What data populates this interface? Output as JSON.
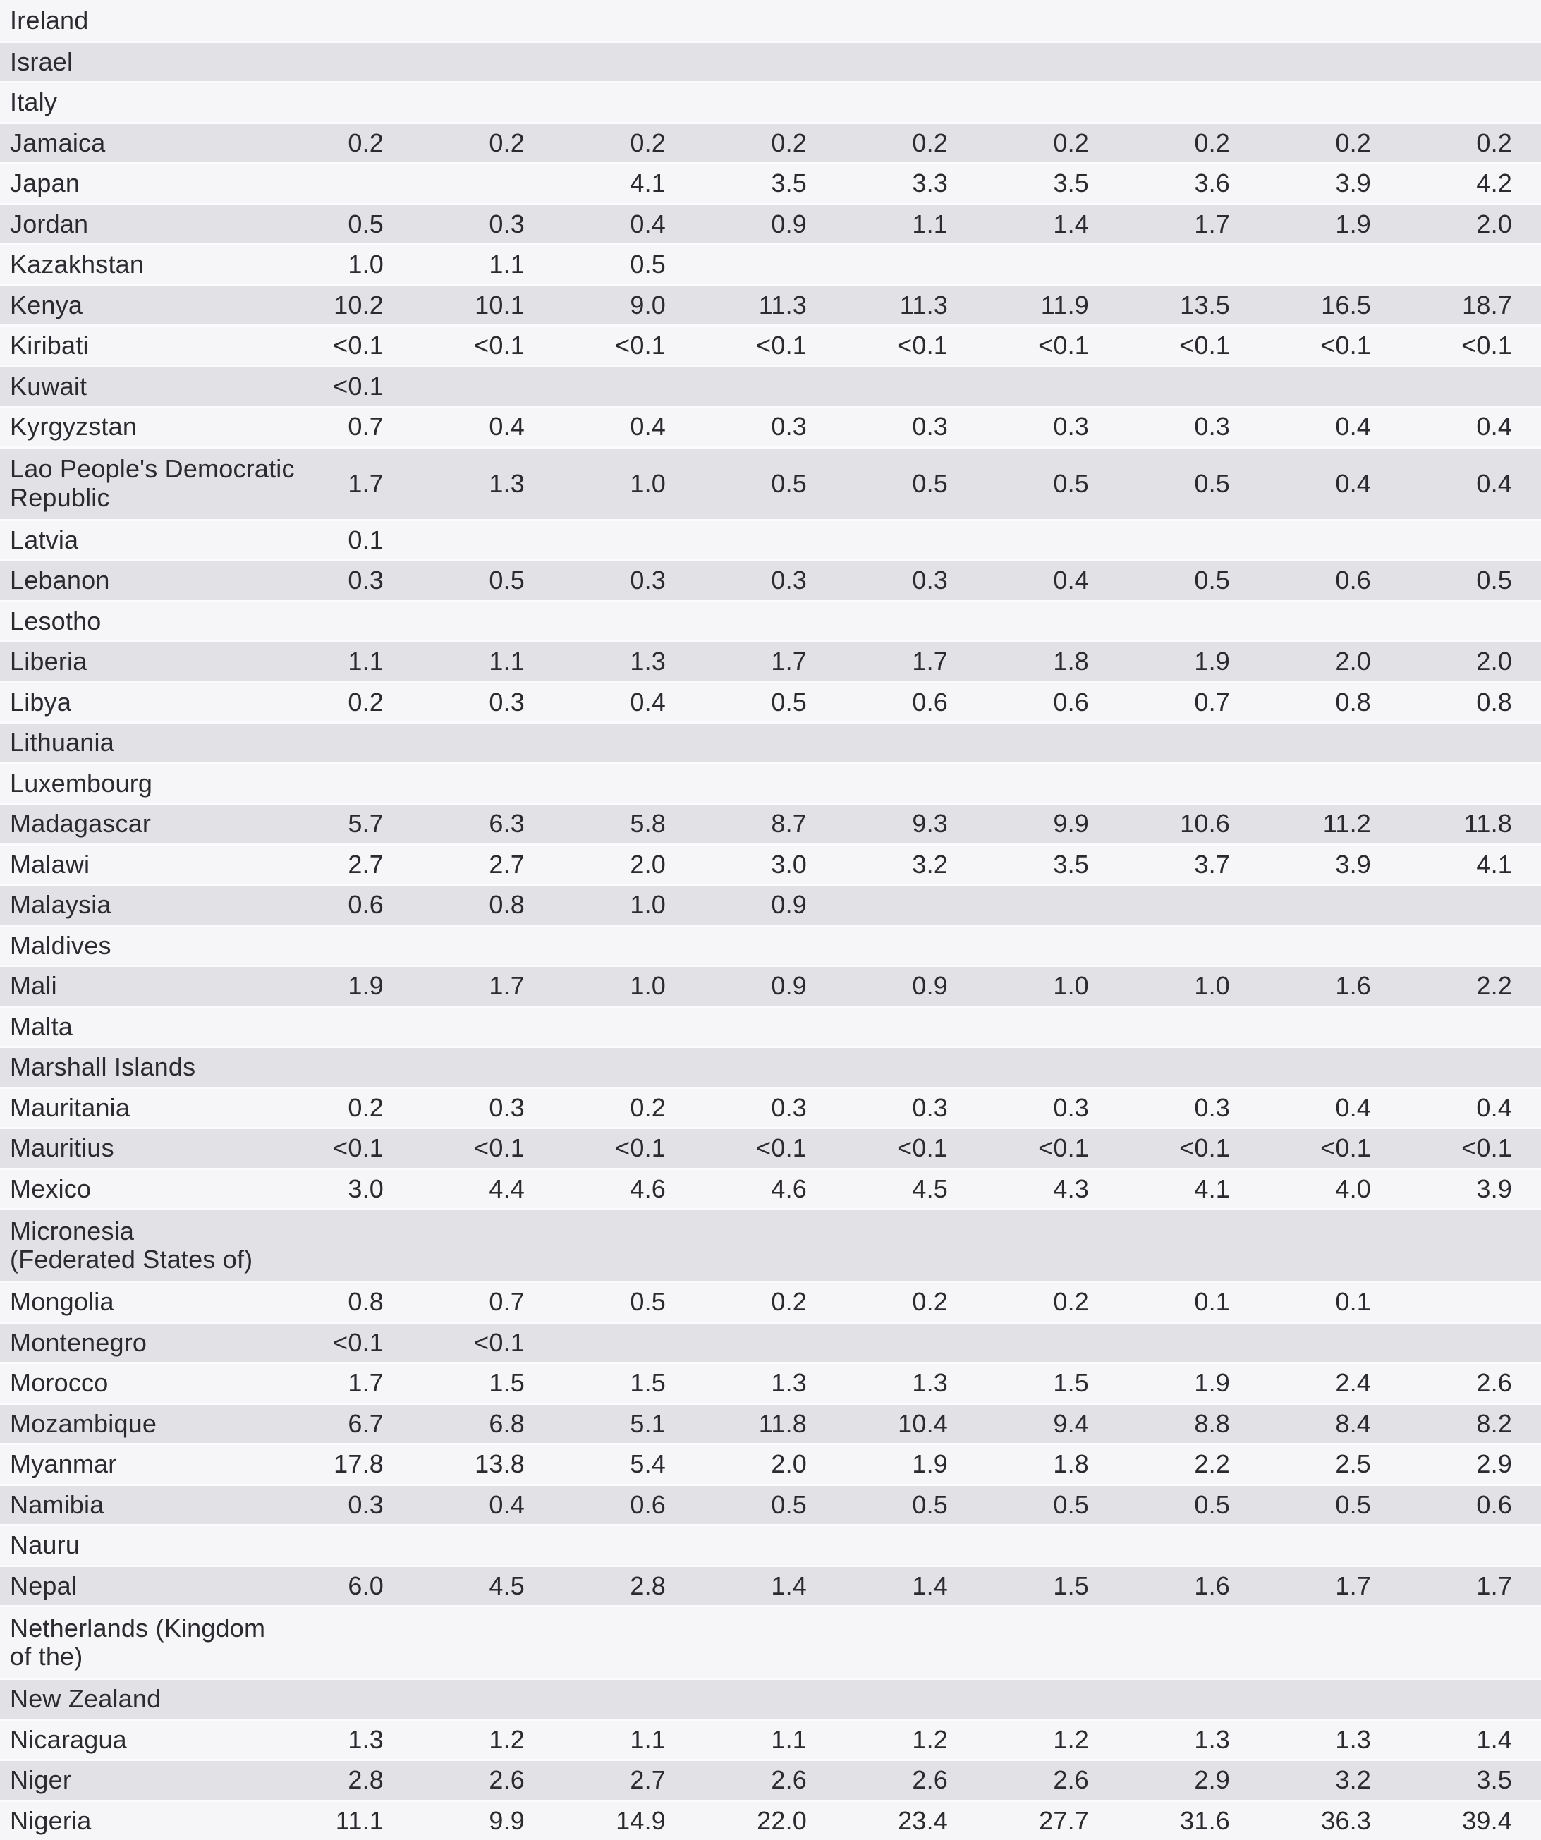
{
  "colors": {
    "row_light": "#f6f5f7",
    "row_dark": "#e2e1e5",
    "separator": "#fbfbfd",
    "text": "#2b2a2e"
  },
  "table": {
    "num_value_columns": 9,
    "rows": [
      {
        "name": "Ireland",
        "values": [
          "",
          "",
          "",
          "",
          "",
          "",
          "",
          "",
          ""
        ]
      },
      {
        "name": "Israel",
        "values": [
          "",
          "",
          "",
          "",
          "",
          "",
          "",
          "",
          ""
        ]
      },
      {
        "name": "Italy",
        "values": [
          "",
          "",
          "",
          "",
          "",
          "",
          "",
          "",
          ""
        ]
      },
      {
        "name": "Jamaica",
        "values": [
          "0.2",
          "0.2",
          "0.2",
          "0.2",
          "0.2",
          "0.2",
          "0.2",
          "0.2",
          "0.2"
        ]
      },
      {
        "name": "Japan",
        "values": [
          "",
          "",
          "4.1",
          "3.5",
          "3.3",
          "3.5",
          "3.6",
          "3.9",
          "4.2"
        ]
      },
      {
        "name": "Jordan",
        "values": [
          "0.5",
          "0.3",
          "0.4",
          "0.9",
          "1.1",
          "1.4",
          "1.7",
          "1.9",
          "2.0"
        ]
      },
      {
        "name": "Kazakhstan",
        "values": [
          "1.0",
          "1.1",
          "0.5",
          "",
          "",
          "",
          "",
          "",
          ""
        ]
      },
      {
        "name": "Kenya",
        "values": [
          "10.2",
          "10.1",
          "9.0",
          "11.3",
          "11.3",
          "11.9",
          "13.5",
          "16.5",
          "18.7"
        ]
      },
      {
        "name": "Kiribati",
        "values": [
          "<0.1",
          "<0.1",
          "<0.1",
          "<0.1",
          "<0.1",
          "<0.1",
          "<0.1",
          "<0.1",
          "<0.1"
        ]
      },
      {
        "name": "Kuwait",
        "values": [
          "<0.1",
          "",
          "",
          "",
          "",
          "",
          "",
          "",
          ""
        ]
      },
      {
        "name": "Kyrgyzstan",
        "values": [
          "0.7",
          "0.4",
          "0.4",
          "0.3",
          "0.3",
          "0.3",
          "0.3",
          "0.4",
          "0.4"
        ]
      },
      {
        "name": "Lao People's Democratic\nRepublic",
        "values": [
          "1.7",
          "1.3",
          "1.0",
          "0.5",
          "0.5",
          "0.5",
          "0.5",
          "0.4",
          "0.4"
        ]
      },
      {
        "name": "Latvia",
        "values": [
          "0.1",
          "",
          "",
          "",
          "",
          "",
          "",
          "",
          ""
        ]
      },
      {
        "name": "Lebanon",
        "values": [
          "0.3",
          "0.5",
          "0.3",
          "0.3",
          "0.3",
          "0.4",
          "0.5",
          "0.6",
          "0.5"
        ]
      },
      {
        "name": "Lesotho",
        "values": [
          "",
          "",
          "",
          "",
          "",
          "",
          "",
          "",
          ""
        ]
      },
      {
        "name": "Liberia",
        "values": [
          "1.1",
          "1.1",
          "1.3",
          "1.7",
          "1.7",
          "1.8",
          "1.9",
          "2.0",
          "2.0"
        ]
      },
      {
        "name": "Libya",
        "values": [
          "0.2",
          "0.3",
          "0.4",
          "0.5",
          "0.6",
          "0.6",
          "0.7",
          "0.8",
          "0.8"
        ]
      },
      {
        "name": "Lithuania",
        "values": [
          "",
          "",
          "",
          "",
          "",
          "",
          "",
          "",
          ""
        ]
      },
      {
        "name": "Luxembourg",
        "values": [
          "",
          "",
          "",
          "",
          "",
          "",
          "",
          "",
          ""
        ]
      },
      {
        "name": "Madagascar",
        "values": [
          "5.7",
          "6.3",
          "5.8",
          "8.7",
          "9.3",
          "9.9",
          "10.6",
          "11.2",
          "11.8"
        ]
      },
      {
        "name": "Malawi",
        "values": [
          "2.7",
          "2.7",
          "2.0",
          "3.0",
          "3.2",
          "3.5",
          "3.7",
          "3.9",
          "4.1"
        ]
      },
      {
        "name": "Malaysia",
        "values": [
          "0.6",
          "0.8",
          "1.0",
          "0.9",
          "",
          "",
          "",
          "",
          ""
        ]
      },
      {
        "name": "Maldives",
        "values": [
          "",
          "",
          "",
          "",
          "",
          "",
          "",
          "",
          ""
        ]
      },
      {
        "name": "Mali",
        "values": [
          "1.9",
          "1.7",
          "1.0",
          "0.9",
          "0.9",
          "1.0",
          "1.0",
          "1.6",
          "2.2"
        ]
      },
      {
        "name": "Malta",
        "values": [
          "",
          "",
          "",
          "",
          "",
          "",
          "",
          "",
          ""
        ]
      },
      {
        "name": "Marshall Islands",
        "values": [
          "",
          "",
          "",
          "",
          "",
          "",
          "",
          "",
          ""
        ]
      },
      {
        "name": "Mauritania",
        "values": [
          "0.2",
          "0.3",
          "0.2",
          "0.3",
          "0.3",
          "0.3",
          "0.3",
          "0.4",
          "0.4"
        ]
      },
      {
        "name": "Mauritius",
        "values": [
          "<0.1",
          "<0.1",
          "<0.1",
          "<0.1",
          "<0.1",
          "<0.1",
          "<0.1",
          "<0.1",
          "<0.1"
        ]
      },
      {
        "name": "Mexico",
        "values": [
          "3.0",
          "4.4",
          "4.6",
          "4.6",
          "4.5",
          "4.3",
          "4.1",
          "4.0",
          "3.9"
        ]
      },
      {
        "name": "Micronesia\n(Federated States of)",
        "values": [
          "",
          "",
          "",
          "",
          "",
          "",
          "",
          "",
          ""
        ]
      },
      {
        "name": "Mongolia",
        "values": [
          "0.8",
          "0.7",
          "0.5",
          "0.2",
          "0.2",
          "0.2",
          "0.1",
          "0.1",
          ""
        ]
      },
      {
        "name": "Montenegro",
        "values": [
          "<0.1",
          "<0.1",
          "",
          "",
          "",
          "",
          "",
          "",
          ""
        ]
      },
      {
        "name": "Morocco",
        "values": [
          "1.7",
          "1.5",
          "1.5",
          "1.3",
          "1.3",
          "1.5",
          "1.9",
          "2.4",
          "2.6"
        ]
      },
      {
        "name": "Mozambique",
        "values": [
          "6.7",
          "6.8",
          "5.1",
          "11.8",
          "10.4",
          "9.4",
          "8.8",
          "8.4",
          "8.2"
        ]
      },
      {
        "name": "Myanmar",
        "values": [
          "17.8",
          "13.8",
          "5.4",
          "2.0",
          "1.9",
          "1.8",
          "2.2",
          "2.5",
          "2.9"
        ]
      },
      {
        "name": "Namibia",
        "values": [
          "0.3",
          "0.4",
          "0.6",
          "0.5",
          "0.5",
          "0.5",
          "0.5",
          "0.5",
          "0.6"
        ]
      },
      {
        "name": "Nauru",
        "values": [
          "",
          "",
          "",
          "",
          "",
          "",
          "",
          "",
          ""
        ]
      },
      {
        "name": "Nepal",
        "values": [
          "6.0",
          "4.5",
          "2.8",
          "1.4",
          "1.4",
          "1.5",
          "1.6",
          "1.7",
          "1.7"
        ]
      },
      {
        "name": "Netherlands (Kingdom\nof the)",
        "values": [
          "",
          "",
          "",
          "",
          "",
          "",
          "",
          "",
          ""
        ]
      },
      {
        "name": "New Zealand",
        "values": [
          "",
          "",
          "",
          "",
          "",
          "",
          "",
          "",
          ""
        ]
      },
      {
        "name": "Nicaragua",
        "values": [
          "1.3",
          "1.2",
          "1.1",
          "1.1",
          "1.2",
          "1.2",
          "1.3",
          "1.3",
          "1.4"
        ]
      },
      {
        "name": "Niger",
        "values": [
          "2.8",
          "2.6",
          "2.7",
          "2.6",
          "2.6",
          "2.6",
          "2.9",
          "3.2",
          "3.5"
        ]
      },
      {
        "name": "Nigeria",
        "values": [
          "11.1",
          "9.9",
          "14.9",
          "22.0",
          "23.4",
          "27.7",
          "31.6",
          "36.3",
          "39.4"
        ]
      }
    ]
  }
}
